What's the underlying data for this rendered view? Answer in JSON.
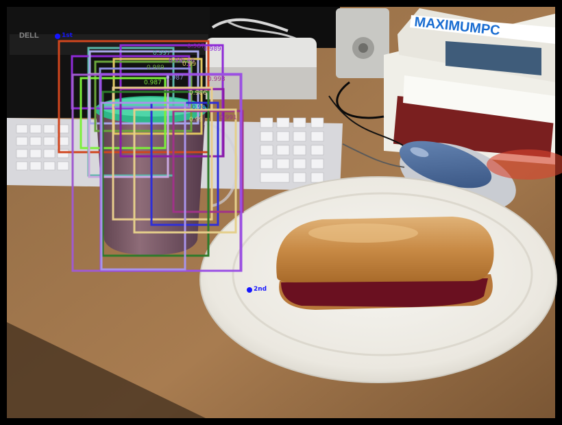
{
  "image": {
    "description_colors": {
      "frame": "#000000",
      "desk": "#a0764c",
      "plate": "#f2f0ea",
      "bun": "#c88a45",
      "jelly": "#6a1020",
      "cup": "#6e4f5c",
      "lid": "#2fb88a",
      "mouse_top": "#4d6c9c",
      "mouse_body": "#c9ccd2",
      "keyboard": "#d8d8dc",
      "monitor": "#141414",
      "speaker": "#c8c8c4",
      "magazine_title": "#1a6dd1"
    }
  },
  "overlay": {
    "boxes": [
      {
        "color": "#d0461e"
      },
      {
        "color": "#59b6a8"
      },
      {
        "color": "#8e2ad6"
      },
      {
        "color": "#8e2ad6"
      },
      {
        "color": "#a8a8ea"
      },
      {
        "color": "#6aa63c"
      },
      {
        "color": "#e0c760"
      },
      {
        "color": "#7cf03a"
      },
      {
        "color": "#8c8cdc"
      },
      {
        "color": "#caa8e0"
      },
      {
        "color": "#8a1aa8"
      },
      {
        "color": "#a05ad0"
      },
      {
        "color": "#e8cc8c"
      },
      {
        "color": "#2f2fd8"
      },
      {
        "color": "#a03288"
      },
      {
        "color": "#9a4fe4"
      },
      {
        "color": "#2d7a2a"
      },
      {
        "color": "#a893ea"
      },
      {
        "color": "#e5cf8b"
      }
    ],
    "scores": [
      {
        "text": "0.997",
        "color": "#59b6a8"
      },
      {
        "text": "0.99",
        "color": "#8e2ad6"
      },
      {
        "text": "0.989",
        "color": "#8e2ad6"
      },
      {
        "text": "0.989",
        "color": "#6aa63c"
      },
      {
        "text": "0.99",
        "color": "#a05ad0"
      },
      {
        "text": "0.99",
        "color": "#e0c760"
      },
      {
        "text": "0.987",
        "color": "#7cf03a"
      },
      {
        "text": "0.987",
        "color": "#8c8cdc"
      },
      {
        "text": "0.987",
        "color": "#8a1aa8"
      },
      {
        "text": "0.986",
        "color": "#e8cc8c"
      },
      {
        "text": "0.993",
        "color": "#a03288"
      },
      {
        "text": "0.987",
        "color": "#2f2fd8"
      },
      {
        "text": "0.99",
        "color": "#e5cf8b"
      },
      {
        "text": "0.991",
        "color": "#a03288"
      }
    ],
    "points": [
      {
        "label": "1st",
        "color": "#1515ff"
      },
      {
        "label": "2nd",
        "color": "#1515ff"
      }
    ]
  }
}
